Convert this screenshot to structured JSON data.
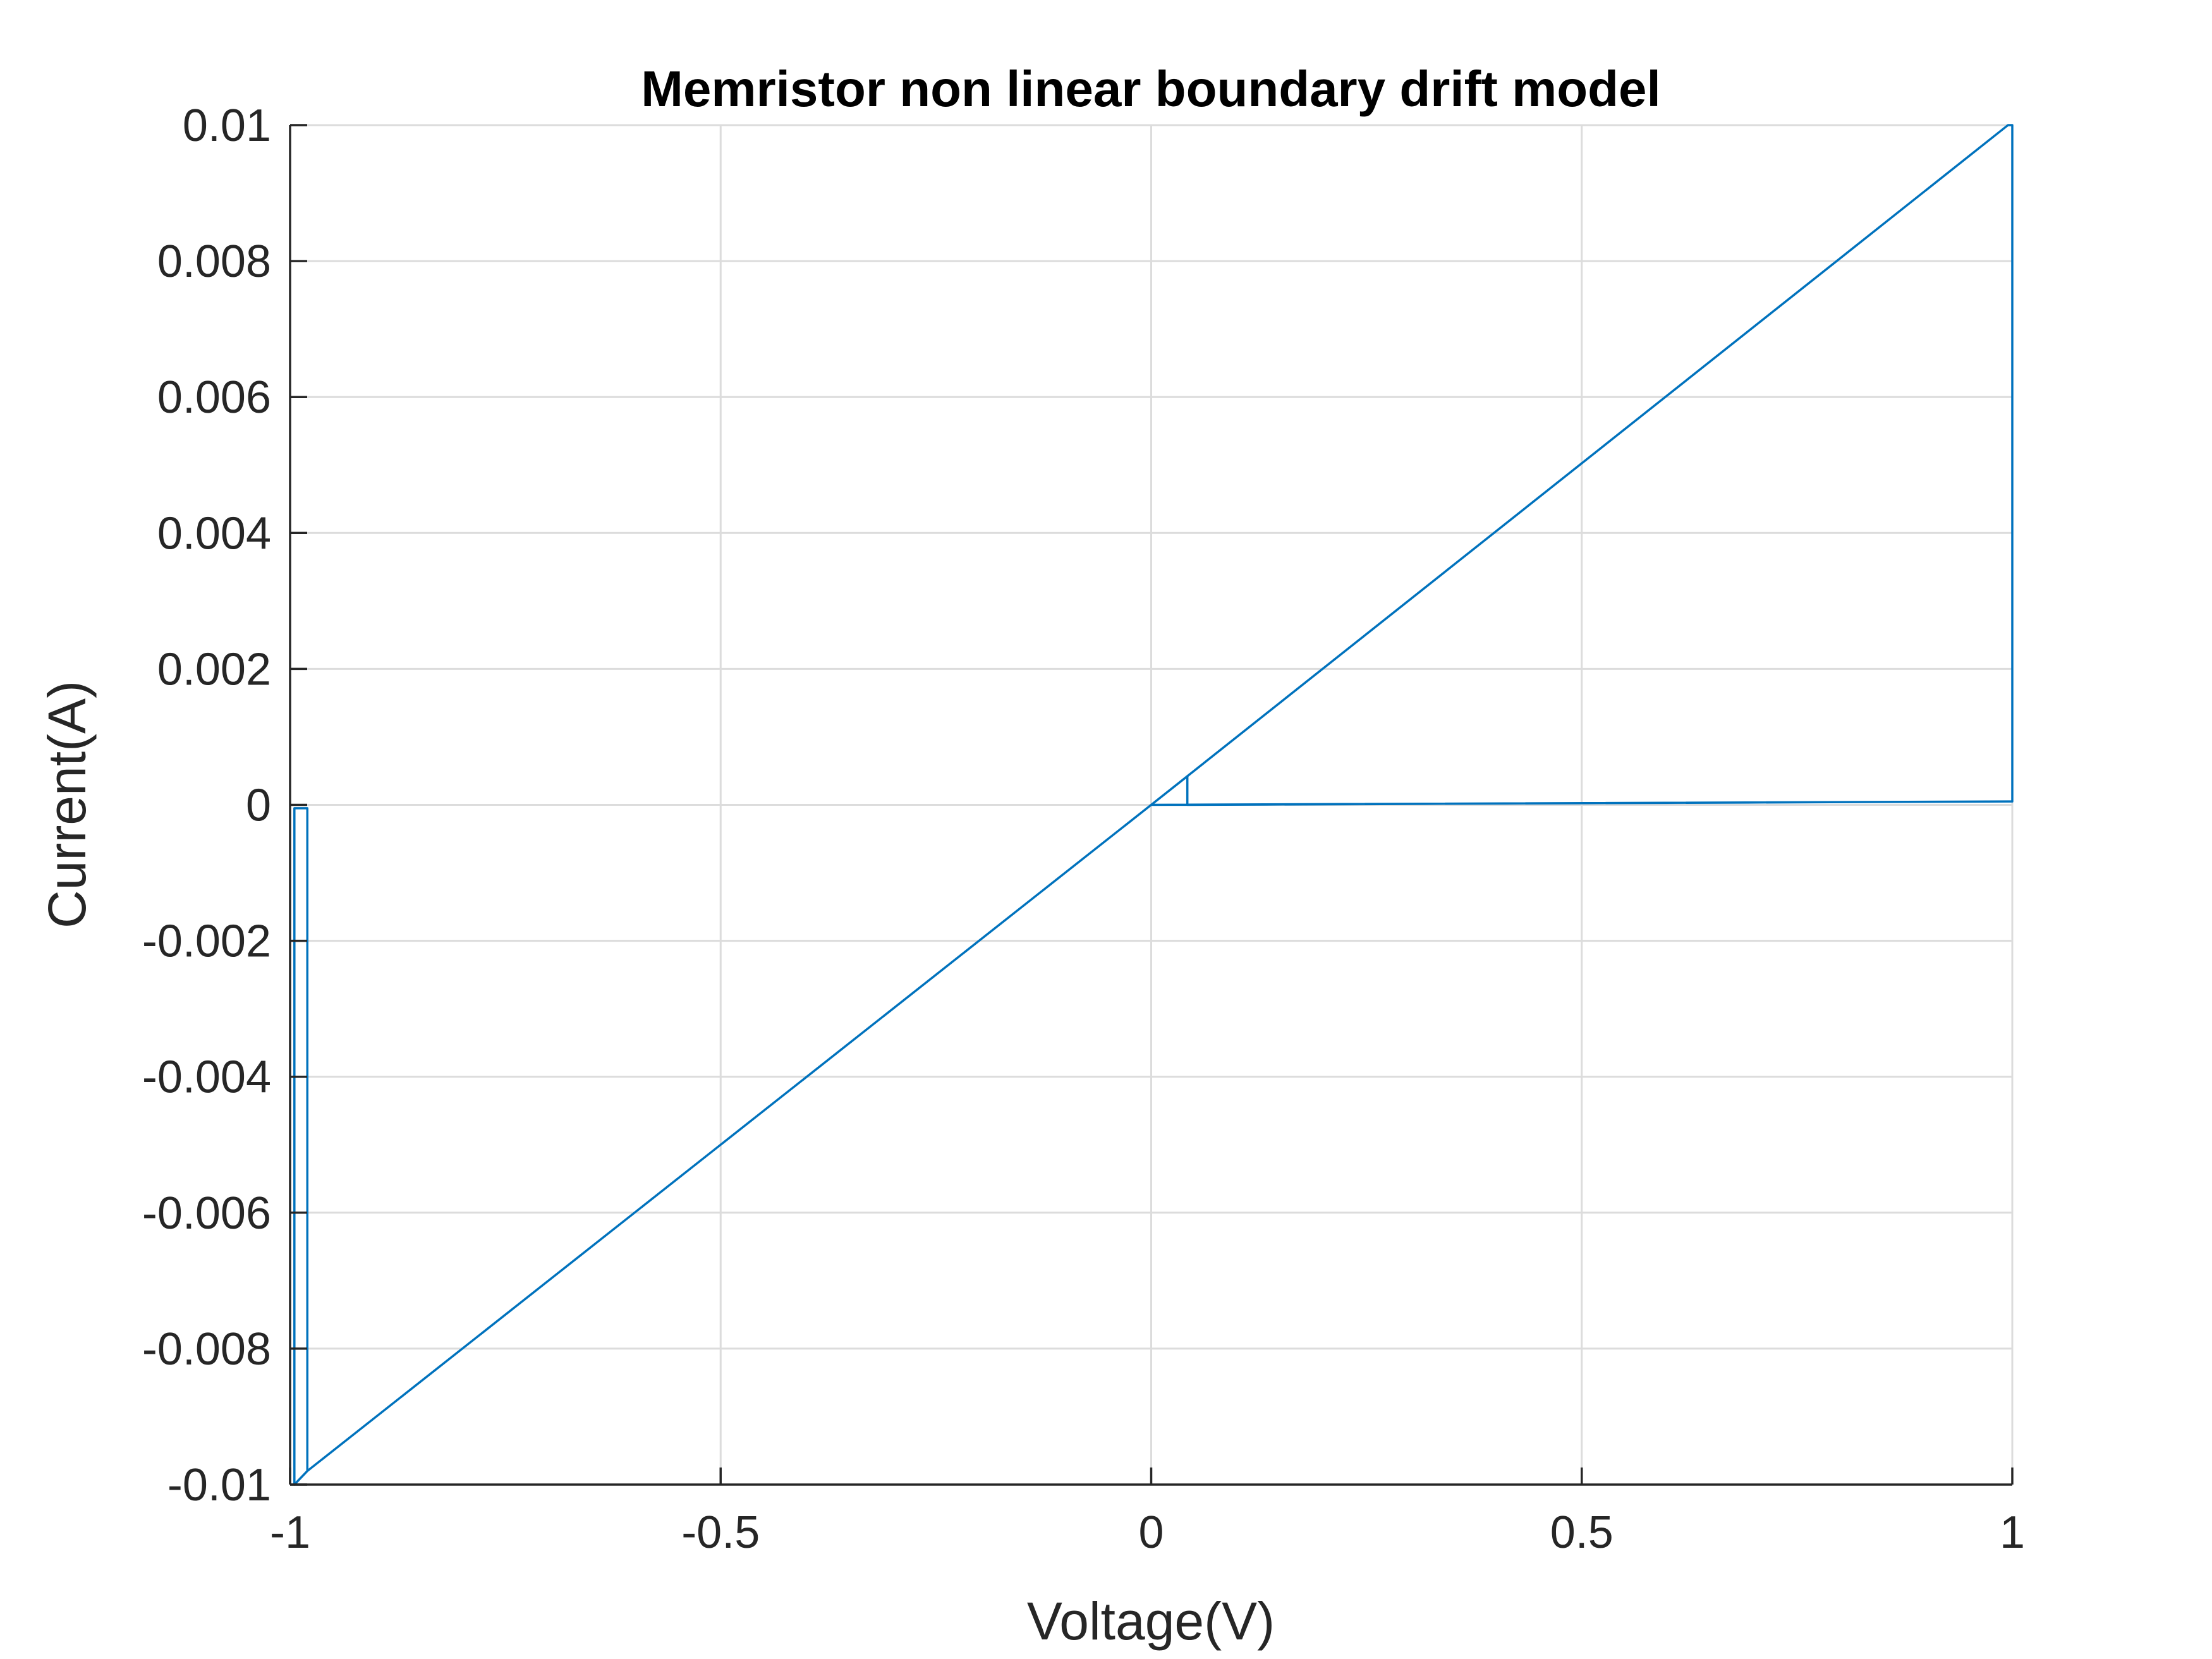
{
  "chart_data": {
    "type": "line",
    "title": "Memristor non linear boundary drift model",
    "xlabel": "Voltage(V)",
    "ylabel": "Current(A)",
    "xlim": [
      -1,
      1
    ],
    "ylim": [
      -0.01,
      0.01
    ],
    "xticks": [
      -1,
      -0.5,
      0,
      0.5,
      1
    ],
    "xtick_labels": [
      "-1",
      "-0.5",
      "0",
      "0.5",
      "1"
    ],
    "yticks": [
      -0.01,
      -0.008,
      -0.006,
      -0.004,
      -0.002,
      0,
      0.002,
      0.004,
      0.006,
      0.008,
      0.01
    ],
    "ytick_labels": [
      "-0.01",
      "-0.008",
      "-0.006",
      "-0.004",
      "-0.002",
      "0",
      "0.002",
      "0.004",
      "0.006",
      "0.008",
      "0.01"
    ],
    "grid": true,
    "line_color": "#0072BD",
    "grid_color": "#dcdcdc",
    "axis_color": "#262626",
    "series": [
      {
        "x": [
          0,
          0.042,
          0.042,
          0.995,
          1.0,
          1.0,
          0.995,
          0,
          -0.98,
          -0.98,
          -0.995,
          -0.995,
          -0.98,
          0,
          0.995,
          1.0
        ],
        "y": [
          0,
          0.00042,
          0,
          5e-05,
          5e-05,
          0.01,
          0.01,
          0,
          -0.0098,
          -5e-05,
          -5e-05,
          -0.01,
          -0.0098,
          0,
          5e-05,
          5e-05
        ]
      }
    ]
  }
}
